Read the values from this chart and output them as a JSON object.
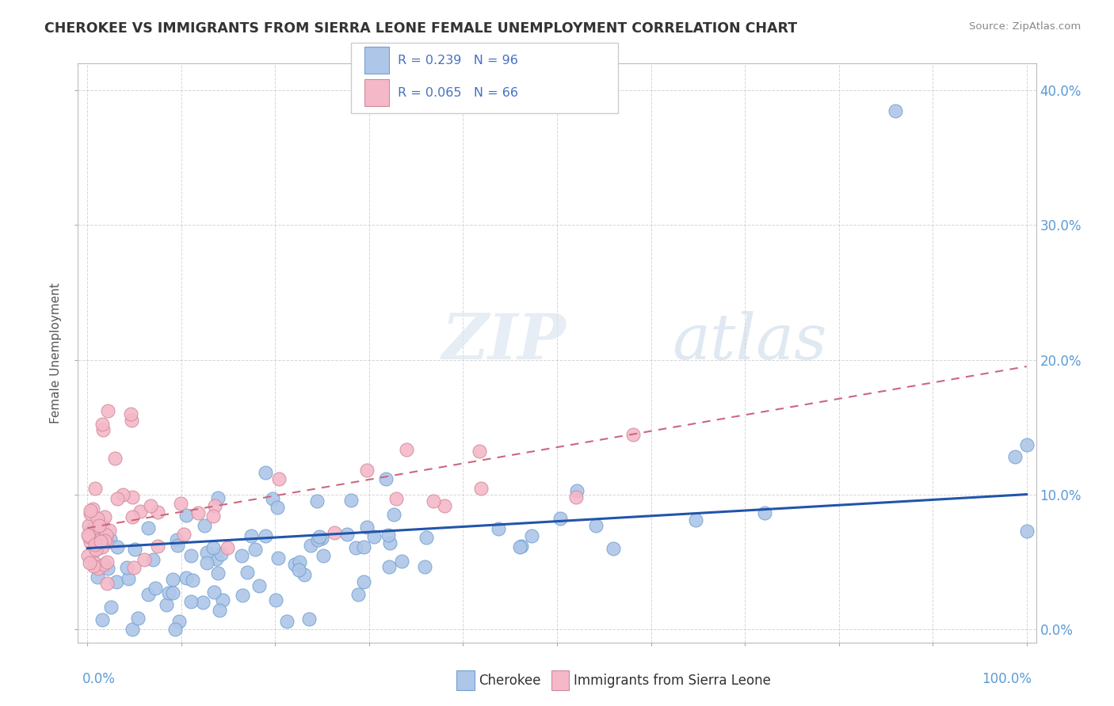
{
  "title": "CHEROKEE VS IMMIGRANTS FROM SIERRA LEONE FEMALE UNEMPLOYMENT CORRELATION CHART",
  "source": "Source: ZipAtlas.com",
  "ylabel": "Female Unemployment",
  "watermark_zip": "ZIP",
  "watermark_atlas": "atlas",
  "legend_cherokee_R": "R = 0.239",
  "legend_cherokee_N": "N = 96",
  "legend_sierra_R": "R = 0.065",
  "legend_sierra_N": "N = 66",
  "cherokee_color": "#aec6e8",
  "cherokee_edge": "#6fa0d0",
  "cherokee_line_color": "#2255aa",
  "sierra_color": "#f4b8c8",
  "sierra_edge": "#d08898",
  "sierra_line_color": "#cc6680",
  "background_color": "#ffffff",
  "grid_color": "#cccccc",
  "title_color": "#333333",
  "axis_label_color": "#5b9bd5",
  "ylabel_color": "#555555"
}
